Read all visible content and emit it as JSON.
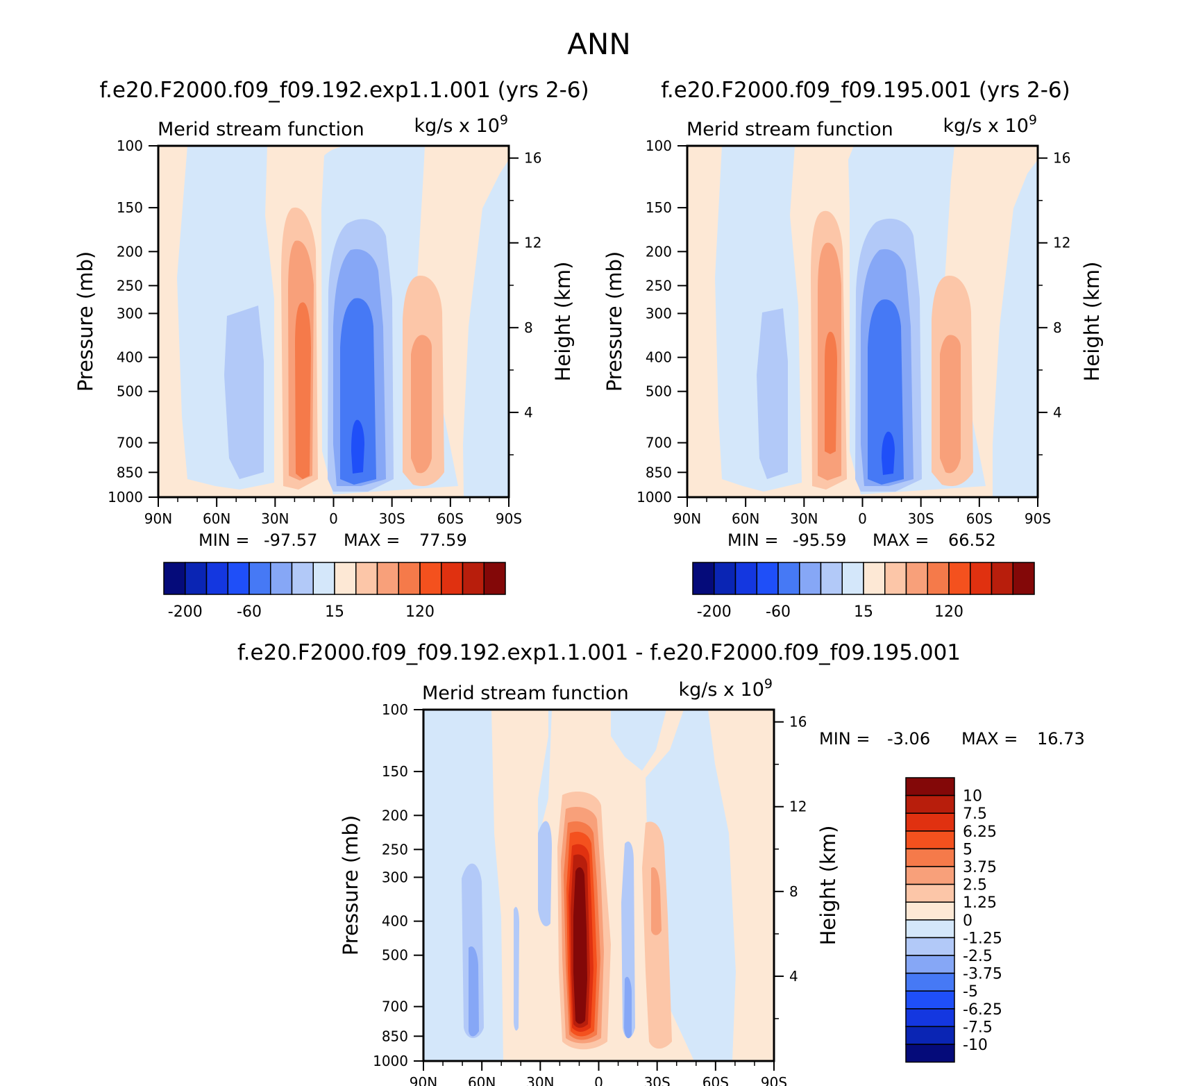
{
  "page": {
    "title": "ANN"
  },
  "chart_data": [
    {
      "type": "contour",
      "title": "f.e20.F2000.f09_f09.192.exp1.1.001 (yrs 2-6)",
      "left_label": "Merid stream function",
      "units": "kg/s x 10",
      "units_exp": "9",
      "ylabel": "Pressure (mb)",
      "ylabel2": "Height (km)",
      "xlabel": "",
      "x_ticks": [
        "90N",
        "60N",
        "30N",
        "0",
        "30S",
        "60S",
        "90S"
      ],
      "x_values": [
        90,
        60,
        30,
        0,
        -30,
        -60,
        -90
      ],
      "p_ticks": [
        100,
        150,
        200,
        250,
        300,
        400,
        500,
        700,
        850,
        1000
      ],
      "h_ticks": [
        16,
        12,
        8,
        4
      ],
      "min_label": "MIN =",
      "min_value": "-97.57",
      "max_label": "MAX =",
      "max_value": "77.59",
      "colorbar_labels": [
        "-200",
        "-60",
        "15",
        "120"
      ],
      "colorbar_levels": [
        -200,
        -150,
        -100,
        -80,
        -60,
        -40,
        -20,
        0,
        15,
        40,
        60,
        80,
        100,
        120,
        150,
        200
      ],
      "features": [
        {
          "name": "nh-ferrel-cell",
          "lat": 45,
          "core_p": 500,
          "value": -30,
          "sign": "negative"
        },
        {
          "name": "nh-hadley-cell",
          "lat": 15,
          "core_p": 500,
          "value": 77.59,
          "sign": "positive"
        },
        {
          "name": "sh-hadley-cell",
          "lat": -10,
          "core_p": 700,
          "value": -97.57,
          "sign": "negative"
        },
        {
          "name": "sh-ferrel-cell",
          "lat": -45,
          "core_p": 500,
          "value": 50,
          "sign": "positive"
        }
      ]
    },
    {
      "type": "contour",
      "title": "f.e20.F2000.f09_f09.195.001 (yrs 2-6)",
      "left_label": "Merid stream function",
      "units": "kg/s x 10",
      "units_exp": "9",
      "ylabel": "Pressure (mb)",
      "ylabel2": "Height (km)",
      "x_ticks": [
        "90N",
        "60N",
        "30N",
        "0",
        "30S",
        "60S",
        "90S"
      ],
      "x_values": [
        90,
        60,
        30,
        0,
        -30,
        -60,
        -90
      ],
      "p_ticks": [
        100,
        150,
        200,
        250,
        300,
        400,
        500,
        700,
        850,
        1000
      ],
      "h_ticks": [
        16,
        12,
        8,
        4
      ],
      "min_label": "MIN =",
      "min_value": "-95.59",
      "max_label": "MAX =",
      "max_value": "66.52",
      "colorbar_labels": [
        "-200",
        "-60",
        "15",
        "120"
      ],
      "colorbar_levels": [
        -200,
        -150,
        -100,
        -80,
        -60,
        -40,
        -20,
        0,
        15,
        40,
        60,
        80,
        100,
        120,
        150,
        200
      ],
      "features": [
        {
          "name": "nh-ferrel-cell",
          "lat": 45,
          "core_p": 500,
          "value": -30,
          "sign": "negative"
        },
        {
          "name": "nh-hadley-cell",
          "lat": 15,
          "core_p": 500,
          "value": 66.52,
          "sign": "positive"
        },
        {
          "name": "sh-hadley-cell",
          "lat": -10,
          "core_p": 700,
          "value": -95.59,
          "sign": "negative"
        },
        {
          "name": "sh-ferrel-cell",
          "lat": -45,
          "core_p": 500,
          "value": 45,
          "sign": "positive"
        }
      ]
    },
    {
      "type": "contour",
      "title": "f.e20.F2000.f09_f09.192.exp1.1.001 - f.e20.F2000.f09_f09.195.001",
      "left_label": "Merid stream function",
      "units": "kg/s x 10",
      "units_exp": "9",
      "ylabel": "Pressure (mb)",
      "ylabel2": "Height (km)",
      "x_ticks": [
        "90N",
        "60N",
        "30N",
        "0",
        "30S",
        "60S",
        "90S"
      ],
      "x_values": [
        90,
        60,
        30,
        0,
        -30,
        -60,
        -90
      ],
      "p_ticks": [
        100,
        150,
        200,
        250,
        300,
        400,
        500,
        700,
        850,
        1000
      ],
      "h_ticks": [
        16,
        12,
        8,
        4
      ],
      "min_label": "MIN =",
      "min_value": "-3.06",
      "max_label": "MAX =",
      "max_value": "16.73",
      "colorbar_labels": [
        "10",
        "7.5",
        "6.25",
        "5",
        "3.75",
        "2.5",
        "1.25",
        "0",
        "-1.25",
        "-2.5",
        "-3.75",
        "-5",
        "-6.25",
        "-7.5",
        "-10"
      ],
      "features": [
        {
          "name": "difference-core",
          "lat": 10,
          "core_p": 400,
          "value": 16.73,
          "sign": "positive"
        },
        {
          "name": "nh-negative-band",
          "lat": 62,
          "core_p": 600,
          "value": -3.06,
          "sign": "negative"
        }
      ]
    }
  ],
  "colors": {
    "palette": [
      "#050b7a",
      "#0a25b4",
      "#1437e0",
      "#1f4ff8",
      "#4679f5",
      "#86a7f6",
      "#b2c9f8",
      "#d4e7fa",
      "#fde8d5",
      "#fcc6a8",
      "#f8a07a",
      "#f57a4a",
      "#f4511e",
      "#e03110",
      "#b81e0c",
      "#830808"
    ]
  }
}
